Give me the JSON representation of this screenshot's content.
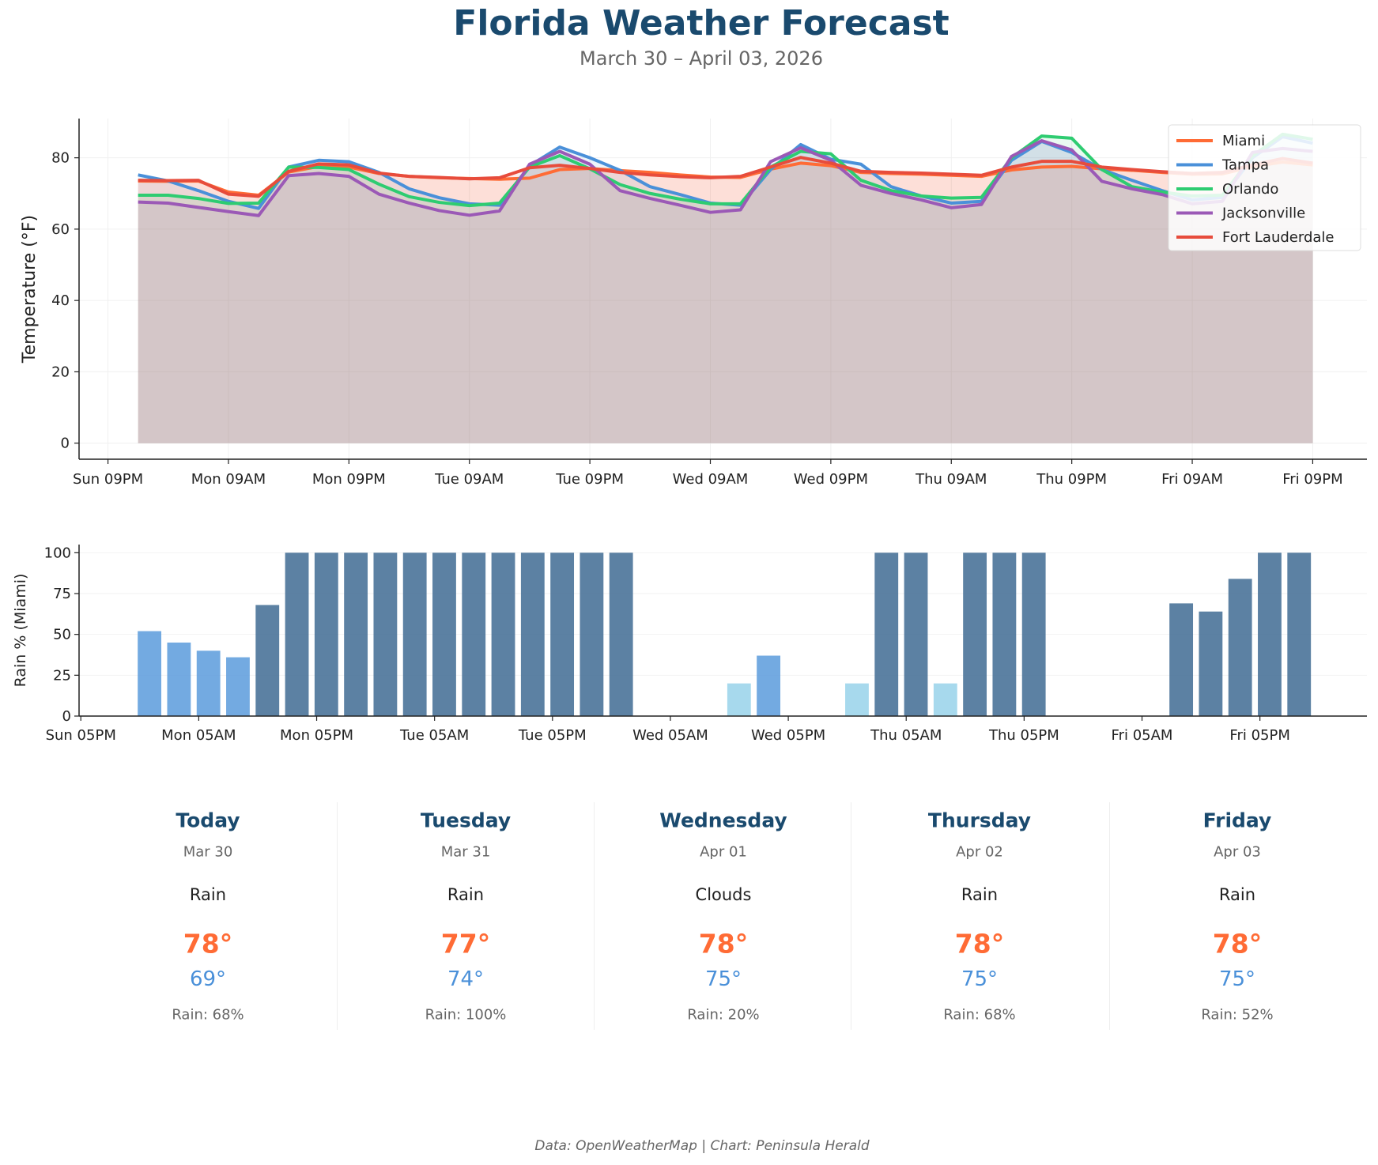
{
  "header": {
    "title": "Florida Weather Forecast",
    "subtitle": "March 30 – April 03, 2026"
  },
  "chart_data": [
    {
      "type": "line",
      "ylabel": "Temperature (°F)",
      "ylim": [
        -4.5,
        91
      ],
      "yticks": [
        0,
        20,
        40,
        60,
        80
      ],
      "x_interval": "3 hours, Mon 12AM to Fri 09PM",
      "xtick_labels": [
        "Sun 09PM",
        "Mon 09AM",
        "Mon 09PM",
        "Tue 09AM",
        "Tue 09PM",
        "Wed 09AM",
        "Wed 09PM",
        "Thu 09AM",
        "Thu 09PM",
        "Fri 09AM",
        "Fri 09PM"
      ],
      "grid": true,
      "legend": "top-right",
      "filled_to_zero": true,
      "series": [
        {
          "name": "Miami",
          "color": "#ff6b35",
          "values": [
            73.5,
            73.4,
            73.5,
            70.4,
            69.5,
            76.0,
            77.6,
            77.4,
            75.6,
            74.8,
            74.4,
            74.2,
            74.0,
            74.3,
            76.7,
            77.0,
            76.4,
            75.9,
            75.2,
            74.6,
            74.5,
            76.8,
            78.5,
            77.8,
            75.9,
            75.6,
            75.4,
            75.1,
            74.8,
            76.6,
            77.4,
            77.6,
            76.9,
            76.5,
            75.9,
            75.4,
            75.5,
            77.5,
            78.8,
            78.0
          ]
        },
        {
          "name": "Tampa",
          "color": "#4a90d9",
          "values": [
            75.2,
            73.5,
            70.8,
            67.8,
            65.8,
            77.4,
            79.3,
            78.9,
            75.9,
            71.3,
            68.8,
            67.1,
            66.7,
            77.8,
            83.0,
            80.0,
            76.5,
            71.9,
            69.7,
            67.3,
            66.7,
            76.7,
            83.7,
            79.6,
            78.2,
            71.9,
            69.3,
            67.3,
            67.8,
            79.3,
            84.6,
            81.5,
            76.7,
            73.7,
            70.8,
            68.2,
            68.9,
            80.0,
            85.9,
            84.1
          ]
        },
        {
          "name": "Orlando",
          "color": "#2ecc71",
          "values": [
            69.5,
            69.5,
            68.6,
            67.2,
            67.3,
            77.4,
            77.3,
            76.7,
            72.6,
            69.1,
            67.5,
            66.6,
            67.3,
            77.4,
            80.6,
            76.9,
            72.5,
            70.0,
            68.4,
            67.1,
            67.1,
            77.4,
            81.8,
            81.1,
            73.7,
            70.8,
            69.3,
            68.7,
            68.9,
            80.0,
            86.1,
            85.5,
            76.7,
            71.9,
            70.4,
            69.3,
            69.5,
            80.5,
            86.6,
            85.2
          ]
        },
        {
          "name": "Jacksonville",
          "color": "#9b59b6",
          "values": [
            67.6,
            67.3,
            66.1,
            64.9,
            63.8,
            75.0,
            75.6,
            74.8,
            69.8,
            67.3,
            65.2,
            63.9,
            65.1,
            78.2,
            81.8,
            78.2,
            70.8,
            68.6,
            66.7,
            64.7,
            65.4,
            78.9,
            82.8,
            79.3,
            72.3,
            70.0,
            68.2,
            66.0,
            66.9,
            80.4,
            84.8,
            82.2,
            73.4,
            71.3,
            69.7,
            67.1,
            67.8,
            81.5,
            82.6,
            81.8
          ]
        },
        {
          "name": "Fort Lauderdale",
          "color": "#e74c3c",
          "values": [
            73.7,
            73.6,
            73.7,
            69.8,
            69.2,
            76.2,
            78.3,
            78.0,
            75.7,
            74.8,
            74.5,
            74.1,
            74.4,
            77.2,
            77.9,
            77.0,
            75.9,
            75.2,
            74.7,
            74.4,
            74.8,
            77.4,
            80.1,
            78.5,
            76.2,
            75.9,
            75.7,
            75.4,
            75.1,
            77.4,
            79.0,
            79.0,
            77.4,
            76.7,
            76.1,
            75.6,
            75.9,
            78.0,
            79.8,
            78.5
          ]
        }
      ]
    },
    {
      "type": "bar",
      "ylabel": "Rain % (Miami)",
      "ylim": [
        0,
        105
      ],
      "yticks": [
        0,
        25,
        50,
        75,
        100
      ],
      "xtick_labels": [
        "Sun 05PM",
        "Mon 05AM",
        "Mon 05PM",
        "Tue 05AM",
        "Tue 05PM",
        "Wed 05AM",
        "Wed 05PM",
        "Thu 05AM",
        "Thu 05PM",
        "Fri 05AM",
        "Fri 05PM"
      ],
      "grid": true,
      "colors": {
        "high": "#4a7399",
        "medium": "#5b9bdc",
        "low": "#98d2ea"
      },
      "values": [
        52,
        45,
        40,
        36,
        68,
        100,
        100,
        100,
        100,
        100,
        100,
        100,
        100,
        100,
        100,
        100,
        100,
        0,
        0,
        0,
        20,
        37,
        0,
        0,
        20,
        100,
        100,
        20,
        100,
        100,
        100,
        0,
        0,
        0,
        0,
        69,
        64,
        84,
        100,
        100
      ]
    }
  ],
  "forecast": [
    {
      "day": "Today",
      "date": "Mar 30",
      "condition": "Rain",
      "high": "78°",
      "low": "69°",
      "rain": "Rain: 68%"
    },
    {
      "day": "Tuesday",
      "date": "Mar 31",
      "condition": "Rain",
      "high": "77°",
      "low": "74°",
      "rain": "Rain: 100%"
    },
    {
      "day": "Wednesday",
      "date": "Apr 01",
      "condition": "Clouds",
      "high": "78°",
      "low": "75°",
      "rain": "Rain: 20%"
    },
    {
      "day": "Thursday",
      "date": "Apr 02",
      "condition": "Rain",
      "high": "78°",
      "low": "75°",
      "rain": "Rain: 68%"
    },
    {
      "day": "Friday",
      "date": "Apr 03",
      "condition": "Rain",
      "high": "78°",
      "low": "75°",
      "rain": "Rain: 52%"
    }
  ],
  "colors": {
    "title": "#1a4a6e",
    "high": "#ff6b35",
    "low": "#4a90d9"
  },
  "footer": "Data: OpenWeatherMap | Chart: Peninsula Herald"
}
